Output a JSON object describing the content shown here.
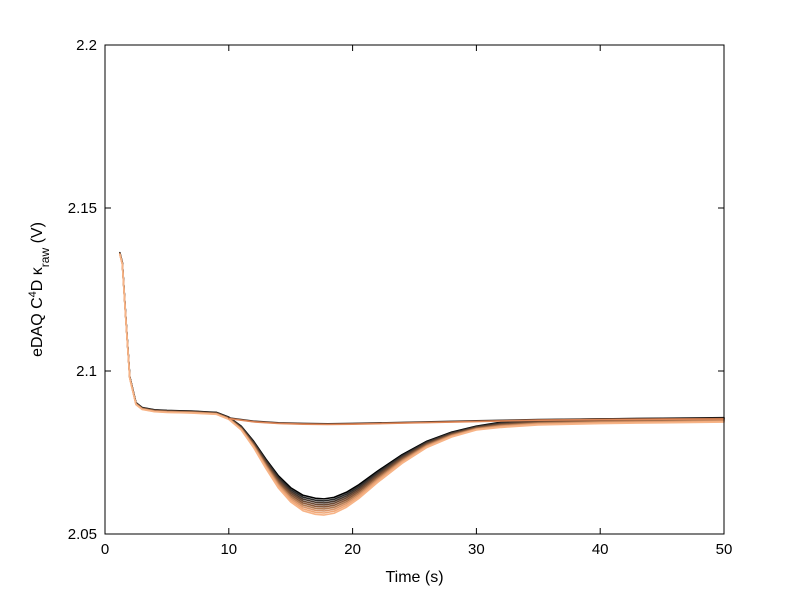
{
  "chart_data": {
    "type": "line",
    "title": "",
    "xlabel": "Time (s)",
    "ylabel": {
      "prefix": "eDAQ C",
      "sup": "4",
      "mid": "D ",
      "kappa": "κ",
      "sub": "raw",
      "suffix": " (V)"
    },
    "xlim": [
      0,
      50
    ],
    "ylim": [
      2.05,
      2.2
    ],
    "xticks": [
      0,
      10,
      20,
      30,
      40,
      50
    ],
    "xtick_labels": [
      "0",
      "10",
      "20",
      "30",
      "40",
      "50"
    ],
    "yticks": [
      2.05,
      2.1,
      2.15,
      2.2
    ],
    "ytick_labels": [
      "2.05",
      "2.1",
      "2.15",
      "2.2"
    ],
    "grid": false,
    "legend": "none",
    "series": [
      {
        "style": "dip",
        "colors": [
          "#000000",
          "#2b2b2b",
          "#4a3a30",
          "#6b4a35",
          "#8a5a3c",
          "#b07a52",
          "#d9956a",
          "#f0a878",
          "#f7b487"
        ],
        "x": [
          1.2,
          1.4,
          1.7,
          2.0,
          2.5,
          3.0,
          4.0,
          5.0,
          6.0,
          7.0,
          8.0,
          9.0,
          10.0,
          11.0,
          12.0,
          13.0,
          14.0,
          15.0,
          16.0,
          17.0,
          17.7,
          18.5,
          19.5,
          20.5,
          22.0,
          24.0,
          26.0,
          28.0,
          30.0,
          32.0,
          35.0,
          40.0,
          45.0,
          50.0
        ],
        "y": [
          2.136,
          2.133,
          2.115,
          2.098,
          2.09,
          2.0885,
          2.0878,
          2.0876,
          2.0875,
          2.0874,
          2.0872,
          2.087,
          2.0855,
          2.0825,
          2.0775,
          2.0715,
          2.066,
          2.062,
          2.0595,
          2.0585,
          2.0583,
          2.0588,
          2.0605,
          2.063,
          2.0675,
          2.073,
          2.0775,
          2.0805,
          2.0825,
          2.0835,
          2.0842,
          2.0846,
          2.0848,
          2.085
        ]
      },
      {
        "style": "flat",
        "colors": [
          "#2b2b2b",
          "#7a4a30",
          "#c07048",
          "#e08858"
        ],
        "x": [
          10.0,
          12.0,
          14.0,
          16.0,
          18.0,
          20.0,
          25.0,
          30.0,
          35.0,
          40.0,
          45.0,
          50.0
        ],
        "y": [
          2.0855,
          2.0845,
          2.084,
          2.0838,
          2.0837,
          2.0838,
          2.0842,
          2.0846,
          2.085,
          2.0852,
          2.0853,
          2.0854
        ]
      }
    ]
  }
}
